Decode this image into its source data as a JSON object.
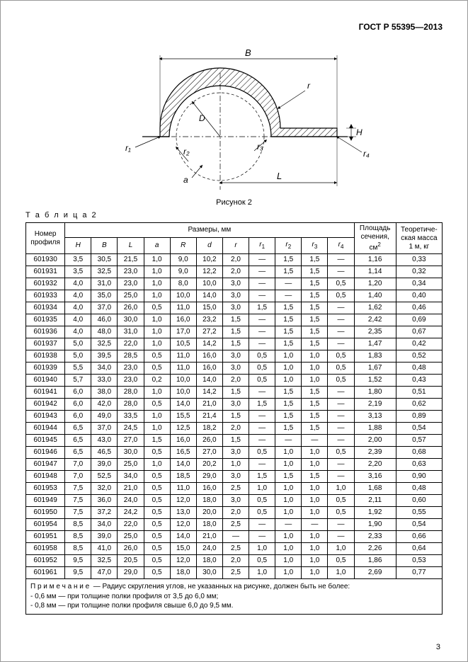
{
  "header": {
    "doc_title": "ГОСТ Р 55395—2013"
  },
  "figure": {
    "caption": "Рисунок 2",
    "labels": {
      "B": "B",
      "r": "r",
      "H": "H",
      "r1": "r₁",
      "r2": "r₂",
      "r3": "r₃",
      "r4": "r₄",
      "D": "D",
      "a": "a",
      "L": "L"
    },
    "colors": {
      "stroke": "#000000",
      "hatch": "#000000",
      "fill": "#ffffff"
    }
  },
  "table_label": "Т а б л и ц а  2",
  "table": {
    "headers": {
      "profile": "Номер профиля",
      "dims_group": "Размеры, мм",
      "H": "H",
      "B": "B",
      "L": "L",
      "a": "a",
      "R": "R",
      "d": "d",
      "r": "r",
      "r1": "r",
      "r1_sub": "1",
      "r2": "r",
      "r2_sub": "2",
      "r3": "r",
      "r3_sub": "3",
      "r4": "r",
      "r4_sub": "4",
      "area": "Площадь сечения,",
      "area_unit": "см",
      "area_sup": "2",
      "mass": "Теоретиче-ская масса 1 м, кг"
    },
    "rows": [
      [
        "601930",
        "3,5",
        "30,5",
        "21,5",
        "1,0",
        "9,0",
        "10,2",
        "2,0",
        "—",
        "1,5",
        "1,5",
        "—",
        "1,16",
        "0,33"
      ],
      [
        "601931",
        "3,5",
        "32,5",
        "23,0",
        "1,0",
        "9,0",
        "12,2",
        "2,0",
        "—",
        "1,5",
        "1,5",
        "—",
        "1,14",
        "0,32"
      ],
      [
        "601932",
        "4,0",
        "31,0",
        "23,0",
        "1,0",
        "8,0",
        "10,0",
        "3,0",
        "—",
        "—",
        "1,5",
        "0,5",
        "1,20",
        "0,34"
      ],
      [
        "601933",
        "4,0",
        "35,0",
        "25,0",
        "1,0",
        "10,0",
        "14,0",
        "3,0",
        "—",
        "—",
        "1,5",
        "0,5",
        "1,40",
        "0,40"
      ],
      [
        "601934",
        "4,0",
        "37,0",
        "26,0",
        "0,5",
        "11,0",
        "15,0",
        "3,0",
        "1,5",
        "1,5",
        "1,5",
        "—",
        "1,62",
        "0,46"
      ],
      [
        "601935",
        "4,0",
        "46,0",
        "30,0",
        "1,0",
        "16,0",
        "23,2",
        "1,5",
        "—",
        "1,5",
        "1,5",
        "—",
        "2,42",
        "0,69"
      ],
      [
        "601936",
        "4,0",
        "48,0",
        "31,0",
        "1,0",
        "17,0",
        "27,2",
        "1,5",
        "—",
        "1,5",
        "1,5",
        "—",
        "2,35",
        "0,67"
      ],
      [
        "601937",
        "5,0",
        "32,5",
        "22,0",
        "1,0",
        "10,5",
        "14,2",
        "1,5",
        "—",
        "1,5",
        "1,5",
        "—",
        "1,47",
        "0,42"
      ],
      [
        "601938",
        "5,0",
        "39,5",
        "28,5",
        "0,5",
        "11,0",
        "16,0",
        "3,0",
        "0,5",
        "1,0",
        "1,0",
        "0,5",
        "1,83",
        "0,52"
      ],
      [
        "601939",
        "5,5",
        "34,0",
        "23,0",
        "0,5",
        "11,0",
        "16,0",
        "3,0",
        "0,5",
        "1,0",
        "1,0",
        "0,5",
        "1,67",
        "0,48"
      ],
      [
        "601940",
        "5,7",
        "33,0",
        "23,0",
        "0,2",
        "10,0",
        "14,0",
        "2,0",
        "0,5",
        "1,0",
        "1,0",
        "0,5",
        "1,52",
        "0,43"
      ],
      [
        "601941",
        "6,0",
        "38,0",
        "28,0",
        "1,0",
        "10,0",
        "14,2",
        "1,5",
        "—",
        "1,5",
        "1,5",
        "—",
        "1,80",
        "0,51"
      ],
      [
        "601942",
        "6,0",
        "42,0",
        "28,0",
        "0,5",
        "14,0",
        "21,0",
        "3,0",
        "1,5",
        "1,5",
        "1,5",
        "—",
        "2,19",
        "0,62"
      ],
      [
        "601943",
        "6,0",
        "49,0",
        "33,5",
        "1,0",
        "15,5",
        "21,4",
        "1,5",
        "—",
        "1,5",
        "1,5",
        "—",
        "3,13",
        "0,89"
      ],
      [
        "601944",
        "6,5",
        "37,0",
        "24,5",
        "1,0",
        "12,5",
        "18,2",
        "2,0",
        "—",
        "1,5",
        "1,5",
        "—",
        "1,88",
        "0,54"
      ],
      [
        "601945",
        "6,5",
        "43,0",
        "27,0",
        "1,5",
        "16,0",
        "26,0",
        "1,5",
        "—",
        "—",
        "—",
        "—",
        "2,00",
        "0,57"
      ],
      [
        "601946",
        "6,5",
        "46,5",
        "30,0",
        "0,5",
        "16,5",
        "27,0",
        "3,0",
        "0,5",
        "1,0",
        "1,0",
        "0,5",
        "2,39",
        "0,68"
      ],
      [
        "601947",
        "7,0",
        "39,0",
        "25,0",
        "1,0",
        "14,0",
        "20,2",
        "1,0",
        "—",
        "1,0",
        "1,0",
        "—",
        "2,20",
        "0,63"
      ],
      [
        "601948",
        "7,0",
        "52,5",
        "34,0",
        "0,5",
        "18,5",
        "29,0",
        "3,0",
        "1,5",
        "1,5",
        "1,5",
        "—",
        "3,16",
        "0,90"
      ],
      [
        "601953",
        "7,5",
        "32,0",
        "21,0",
        "0,5",
        "11,0",
        "16,0",
        "2,5",
        "1,0",
        "1,0",
        "1,0",
        "1,0",
        "1,68",
        "0,48"
      ],
      [
        "601949",
        "7,5",
        "36,0",
        "24,0",
        "0,5",
        "12,0",
        "18,0",
        "3,0",
        "0,5",
        "1,0",
        "1,0",
        "0,5",
        "2,11",
        "0,60"
      ],
      [
        "601950",
        "7,5",
        "37,2",
        "24,2",
        "0,5",
        "13,0",
        "20,0",
        "2,0",
        "0,5",
        "1,0",
        "1,0",
        "0,5",
        "1,92",
        "0,55"
      ],
      [
        "601954",
        "8,5",
        "34,0",
        "22,0",
        "0,5",
        "12,0",
        "18,0",
        "2,5",
        "—",
        "—",
        "—",
        "—",
        "1,90",
        "0,54"
      ],
      [
        "601951",
        "8,5",
        "39,0",
        "25,0",
        "0,5",
        "14,0",
        "21,0",
        "—",
        "—",
        "1,0",
        "1,0",
        "—",
        "2,33",
        "0,66"
      ],
      [
        "601958",
        "8,5",
        "41,0",
        "26,0",
        "0,5",
        "15,0",
        "24,0",
        "2,5",
        "1,0",
        "1,0",
        "1,0",
        "1,0",
        "2,26",
        "0,64"
      ],
      [
        "601952",
        "9,5",
        "32,5",
        "20,5",
        "0,5",
        "12,0",
        "18,0",
        "2,0",
        "0,5",
        "1,0",
        "1,0",
        "0,5",
        "1,86",
        "0,53"
      ],
      [
        "601961",
        "9,5",
        "47,0",
        "29,0",
        "0,5",
        "18,0",
        "30,0",
        "2,5",
        "1,0",
        "1,0",
        "1,0",
        "1,0",
        "2,69",
        "0,77"
      ]
    ],
    "note": {
      "lead": "П р и м е ч а н и е  — Радиус скругления углов, не указанных на рисунке, должен быть не более:",
      "line1": "- 0,6 мм — при толщине полки профиля от 3,5 до 6,0 мм;",
      "line2": "- 0,8 мм — при толщине полки профиля свыше 6,0 до 9,5 мм."
    }
  },
  "page_number": "3"
}
